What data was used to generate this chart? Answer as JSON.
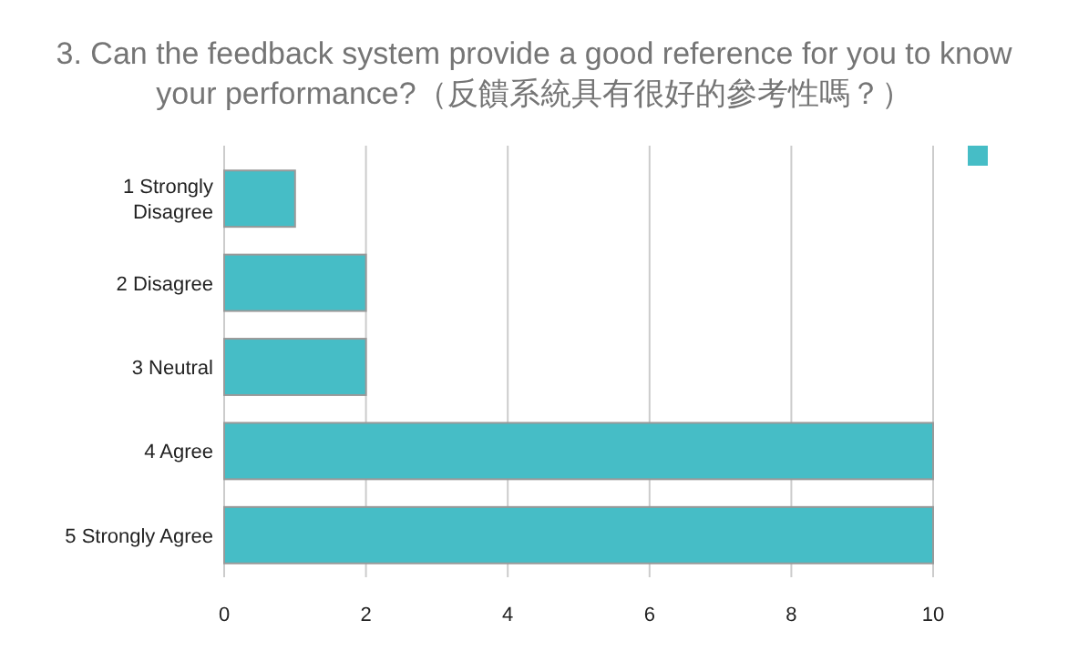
{
  "chart_data": {
    "type": "bar",
    "orientation": "horizontal",
    "title": "3. Can the feedback system provide a good reference for you to know your performance?（反饋系統具有很好的參考性嗎？）",
    "categories": [
      "1 Strongly Disagree",
      "2 Disagree",
      "3 Neutral",
      "4 Agree",
      "5 Strongly Agree"
    ],
    "series": [
      {
        "color": "#46bdc6",
        "values": [
          1,
          2,
          2,
          10,
          10
        ]
      }
    ],
    "xlim": [
      0,
      10
    ],
    "xticks": [
      0,
      2,
      4,
      6,
      8,
      10
    ],
    "grid": "x"
  }
}
